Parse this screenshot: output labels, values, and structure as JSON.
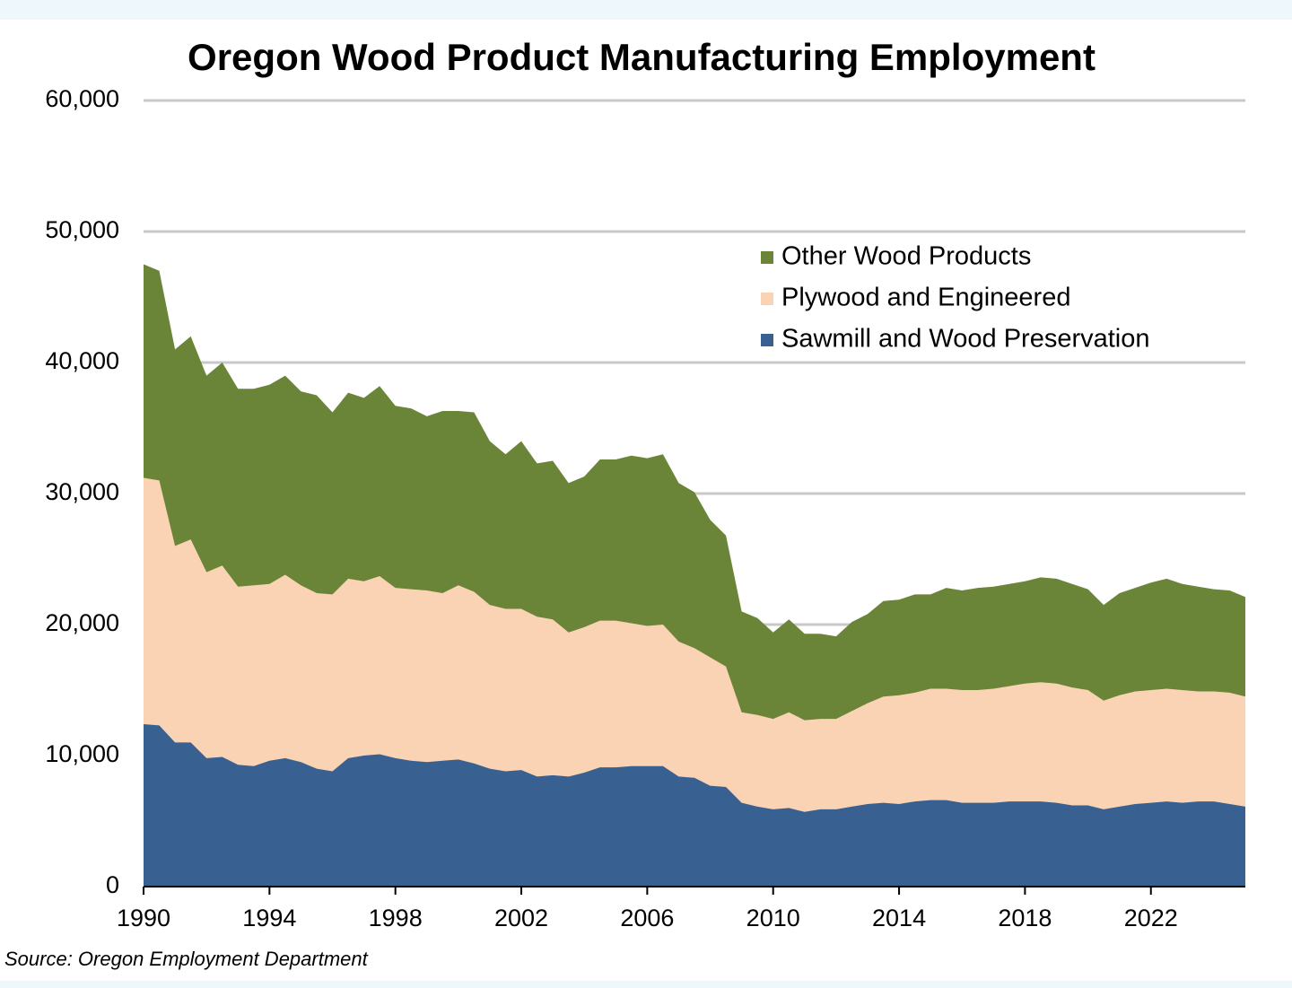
{
  "chart_data": {
    "type": "stacked-area",
    "title": "Oregon Wood Product Manufacturing Employment",
    "source": "Source: Oregon Employment Department",
    "x": [
      1990,
      1990.5,
      1991,
      1991.5,
      1992,
      1992.5,
      1993,
      1993.5,
      1994,
      1994.5,
      1995,
      1995.5,
      1996,
      1996.5,
      1997,
      1997.5,
      1998,
      1998.5,
      1999,
      1999.5,
      2000,
      2000.5,
      2001,
      2001.5,
      2002,
      2002.5,
      2003,
      2003.5,
      2004,
      2004.5,
      2005,
      2005.5,
      2006,
      2006.5,
      2007,
      2007.5,
      2008,
      2008.5,
      2009,
      2009.5,
      2010,
      2010.5,
      2011,
      2011.5,
      2012,
      2012.5,
      2013,
      2013.5,
      2014,
      2014.5,
      2015,
      2015.5,
      2016,
      2016.5,
      2017,
      2017.5,
      2018,
      2018.5,
      2019,
      2019.5,
      2020,
      2020.5,
      2021,
      2021.5,
      2022,
      2022.5,
      2023,
      2023.5,
      2024,
      2024.5,
      2025
    ],
    "series": [
      {
        "name": "Sawmill and Wood Preservation",
        "color": "#386192",
        "values": [
          12400,
          12300,
          11000,
          11000,
          9800,
          9900,
          9300,
          9200,
          9600,
          9800,
          9500,
          9000,
          8800,
          9800,
          10000,
          10100,
          9800,
          9600,
          9500,
          9600,
          9700,
          9400,
          9000,
          8800,
          8900,
          8400,
          8500,
          8400,
          8700,
          9100,
          9100,
          9200,
          9200,
          9200,
          8400,
          8300,
          7700,
          7600,
          6400,
          6100,
          5900,
          6000,
          5700,
          5900,
          5900,
          6100,
          6300,
          6400,
          6300,
          6500,
          6600,
          6600,
          6400,
          6400,
          6400,
          6500,
          6500,
          6500,
          6400,
          6200,
          6200,
          5900,
          6100,
          6300,
          6400,
          6500,
          6400,
          6500,
          6500,
          6300,
          6100
        ]
      },
      {
        "name": "Plywood and Engineered",
        "color": "#f9d3b3",
        "values": [
          18800,
          18700,
          15000,
          15500,
          14200,
          14600,
          13600,
          13800,
          13500,
          14000,
          13500,
          13400,
          13500,
          13700,
          13300,
          13600,
          13000,
          13100,
          13100,
          12800,
          13300,
          13100,
          12500,
          12400,
          12300,
          12200,
          11900,
          11000,
          11100,
          11200,
          11200,
          10900,
          10700,
          10800,
          10300,
          9900,
          9800,
          9200,
          6900,
          7000,
          6900,
          7300,
          7000,
          6900,
          6900,
          7300,
          7700,
          8100,
          8300,
          8300,
          8500,
          8500,
          8600,
          8600,
          8700,
          8800,
          9000,
          9100,
          9100,
          9000,
          8800,
          8300,
          8500,
          8600,
          8600,
          8600,
          8600,
          8400,
          8400,
          8500,
          8400
        ]
      },
      {
        "name": "Other Wood Products",
        "color": "#6b8538",
        "values": [
          16300,
          16000,
          15000,
          15500,
          15000,
          15500,
          15100,
          15000,
          15200,
          15200,
          14800,
          15100,
          13900,
          14200,
          14000,
          14500,
          13900,
          13800,
          13300,
          13900,
          13300,
          13700,
          12500,
          11800,
          12800,
          11700,
          12100,
          11400,
          11500,
          12300,
          12300,
          12800,
          12800,
          13000,
          12100,
          11900,
          10500,
          10000,
          7700,
          7400,
          6600,
          7100,
          6600,
          6500,
          6300,
          6800,
          6800,
          7300,
          7300,
          7500,
          7200,
          7700,
          7600,
          7800,
          7800,
          7800,
          7800,
          8000,
          8000,
          7900,
          7700,
          7300,
          7800,
          7900,
          8200,
          8400,
          8100,
          8000,
          7800,
          7800,
          7600
        ]
      }
    ],
    "xlim": [
      1990,
      2025
    ],
    "xticks": [
      1990,
      1994,
      1998,
      2002,
      2006,
      2010,
      2014,
      2018,
      2022
    ],
    "ylim": [
      0,
      60000
    ],
    "yticks": [
      0,
      {
        "value": 10000,
        "label": "10,000"
      },
      {
        "value": 20000,
        "label": "20,000"
      },
      {
        "value": 30000,
        "label": "30,000"
      },
      {
        "value": 40000,
        "label": "40,000"
      },
      {
        "value": 50000,
        "label": "50,000"
      },
      {
        "value": 60000,
        "label": "60,000"
      }
    ],
    "grid": true,
    "legend": "upper right"
  }
}
